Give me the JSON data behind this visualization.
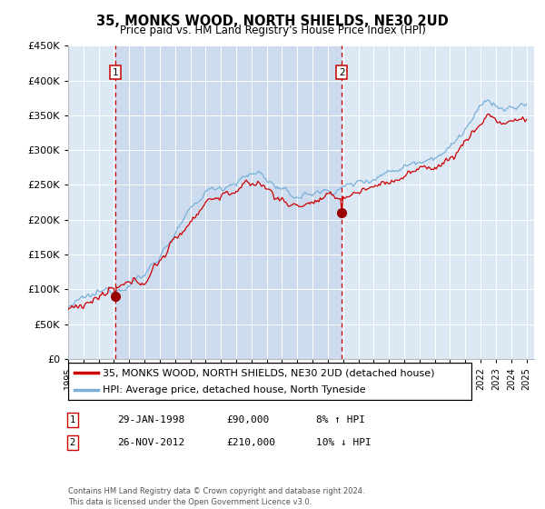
{
  "title": "35, MONKS WOOD, NORTH SHIELDS, NE30 2UD",
  "subtitle": "Price paid vs. HM Land Registry's House Price Index (HPI)",
  "legend_line1": "35, MONKS WOOD, NORTH SHIELDS, NE30 2UD (detached house)",
  "legend_line2": "HPI: Average price, detached house, North Tyneside",
  "sale1_date": "29-JAN-1998",
  "sale1_price": "£90,000",
  "sale1_hpi": "8% ↑ HPI",
  "sale1_year": 1998.08,
  "sale1_value": 90000,
  "sale2_date": "26-NOV-2012",
  "sale2_price": "£210,000",
  "sale2_hpi": "10% ↓ HPI",
  "sale2_year": 2012.9,
  "sale2_value": 210000,
  "footer": "Contains HM Land Registry data © Crown copyright and database right 2024.\nThis data is licensed under the Open Government Licence v3.0.",
  "ylim": [
    0,
    450000
  ],
  "yticks": [
    0,
    50000,
    100000,
    150000,
    200000,
    250000,
    300000,
    350000,
    400000,
    450000
  ],
  "plot_bg": "#dde8f5",
  "shaded_bg": "#ccdcee",
  "line_color_red": "#cc0000",
  "line_color_blue": "#7ab0d8",
  "marker_color": "#990000",
  "vline_color": "#cc0000",
  "grid_color": "#ffffff",
  "fig_bg": "#ffffff"
}
